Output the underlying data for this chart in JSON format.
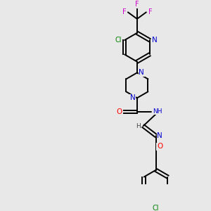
{
  "bg_color": "#e8e8e8",
  "bond_color": "#000000",
  "bond_width": 1.4,
  "N_color": "#0000cc",
  "O_color": "#ff0000",
  "Cl_color": "#008000",
  "F_color": "#cc00cc",
  "H_color": "#444444",
  "font_size": 7.0,
  "xlim": [
    0,
    10
  ],
  "ylim": [
    0,
    10
  ]
}
